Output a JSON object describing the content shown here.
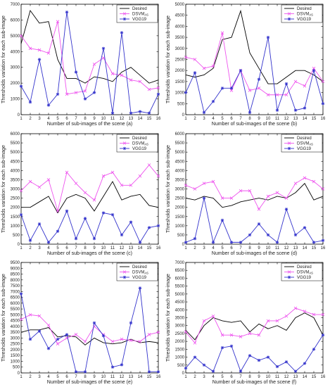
{
  "chart_data": [
    {
      "type": "line",
      "xlabel": "Number of sub-images of the scene (a)",
      "ylabel": "Thresholds variation  for each sub-image",
      "ylim": [
        0,
        7000
      ],
      "yticks": [
        0,
        1000,
        2000,
        3000,
        4000,
        5000,
        6000,
        7000
      ],
      "x": [
        1,
        2,
        3,
        4,
        5,
        6,
        7,
        8,
        9,
        10,
        11,
        12,
        13,
        14,
        15,
        16
      ],
      "legend_position": "top-right",
      "series": [
        {
          "name": "Desired",
          "color": "#000000",
          "marker": "none",
          "values": [
            4500,
            6600,
            5800,
            5900,
            3500,
            2300,
            2300,
            2000,
            2400,
            2300,
            2100,
            2700,
            3000,
            2500,
            2000,
            2200
          ]
        },
        {
          "name": "DSVM",
          "name_sub": "AS",
          "color": "#ee55ee",
          "marker": "x",
          "values": [
            5000,
            4200,
            4100,
            3900,
            5900,
            1300,
            1400,
            1500,
            3200,
            3600,
            2600,
            2500,
            2200,
            2100,
            1600,
            1700
          ]
        },
        {
          "name": "VGG19",
          "color": "#3333cc",
          "marker": "star",
          "values": [
            1800,
            800,
            3500,
            600,
            1300,
            6500,
            2700,
            1000,
            1400,
            4200,
            100,
            5200,
            100,
            200,
            100,
            1300
          ]
        }
      ]
    },
    {
      "type": "line",
      "xlabel": "Number of sub-images of the scene (b)",
      "ylabel": "Thresholds variation  for each sub-image",
      "ylim": [
        0,
        5000
      ],
      "yticks": [
        0,
        500,
        1000,
        1500,
        2000,
        2500,
        3000,
        3500,
        4000,
        4500,
        5000
      ],
      "x": [
        1,
        2,
        3,
        4,
        5,
        6,
        7,
        8,
        9,
        10,
        11,
        12,
        13,
        14,
        15,
        16
      ],
      "legend_position": "top-right",
      "series": [
        {
          "name": "Desired",
          "color": "#000000",
          "marker": "none",
          "values": [
            1800,
            1700,
            1800,
            2100,
            3400,
            3500,
            4700,
            2800,
            2100,
            1400,
            1400,
            1700,
            2000,
            2000,
            1800,
            1500
          ]
        },
        {
          "name": "DSVM",
          "name_sub": "AS",
          "color": "#ee55ee",
          "marker": "x",
          "values": [
            2600,
            2500,
            2100,
            2200,
            3700,
            1100,
            2000,
            1100,
            1200,
            900,
            900,
            900,
            1500,
            1300,
            2100,
            1500
          ]
        },
        {
          "name": "VGG19",
          "color": "#3333cc",
          "marker": "star",
          "values": [
            1000,
            1900,
            100,
            600,
            1200,
            1200,
            2000,
            100,
            1600,
            3500,
            200,
            1400,
            200,
            300,
            2000,
            500
          ]
        }
      ]
    },
    {
      "type": "line",
      "xlabel": "Number of sub-images of the scene (c)",
      "ylabel": "Thresholds variation  for each sub-image",
      "ylim": [
        0,
        6000
      ],
      "yticks": [
        0,
        500,
        1000,
        1500,
        2000,
        2500,
        3000,
        3500,
        4000,
        4500,
        5000,
        5500,
        6000
      ],
      "x": [
        1,
        2,
        3,
        4,
        5,
        6,
        7,
        8,
        9,
        10,
        11,
        12,
        13,
        14,
        15,
        16
      ],
      "legend_position": "top-right",
      "series": [
        {
          "name": "Desired",
          "color": "#000000",
          "marker": "none",
          "values": [
            2000,
            2000,
            2300,
            2600,
            1700,
            2500,
            2700,
            2500,
            1800,
            2600,
            3400,
            2400,
            2600,
            2700,
            2100,
            2000
          ]
        },
        {
          "name": "DSVM",
          "name_sub": "AS",
          "color": "#ee55ee",
          "marker": "x",
          "values": [
            2900,
            3400,
            3100,
            3500,
            1800,
            3900,
            3300,
            2800,
            2400,
            3700,
            3900,
            3200,
            3200,
            3700,
            4300,
            3700
          ]
        },
        {
          "name": "VGG19",
          "color": "#3333cc",
          "marker": "star",
          "values": [
            1600,
            200,
            1100,
            100,
            700,
            1800,
            300,
            1400,
            300,
            1700,
            1600,
            500,
            1200,
            100,
            900,
            1000
          ]
        }
      ]
    },
    {
      "type": "line",
      "xlabel": "Number of sub-images of the scene (d)",
      "ylabel": "Thresholds variation  for each sub-image",
      "ylim": [
        0,
        6000
      ],
      "yticks": [
        0,
        500,
        1000,
        1500,
        2000,
        2500,
        3000,
        3500,
        4000,
        4500,
        5000,
        5500,
        6000
      ],
      "x": [
        1,
        2,
        3,
        4,
        5,
        6,
        7,
        8,
        9,
        10,
        11,
        12,
        13,
        14,
        15,
        16
      ],
      "legend_position": "top-right",
      "series": [
        {
          "name": "Desired",
          "color": "#000000",
          "marker": "none",
          "values": [
            2500,
            2400,
            2600,
            2500,
            2000,
            2100,
            2300,
            2400,
            2500,
            2400,
            2600,
            2500,
            2800,
            3300,
            2400,
            2600
          ]
        },
        {
          "name": "DSVM",
          "name_sub": "AS",
          "color": "#ee55ee",
          "marker": "x",
          "values": [
            3200,
            3000,
            3300,
            3400,
            2500,
            2500,
            2900,
            2900,
            1900,
            2600,
            2800,
            2500,
            3300,
            3600,
            3400,
            3000
          ]
        },
        {
          "name": "VGG19",
          "color": "#3333cc",
          "marker": "star",
          "values": [
            100,
            300,
            2500,
            100,
            1300,
            100,
            100,
            500,
            1100,
            500,
            100,
            1900,
            500,
            900,
            100,
            200
          ]
        }
      ]
    },
    {
      "type": "line",
      "xlabel": "Number of sub-images of the scene (e)",
      "ylabel": "Thresholds variation  for each sub-image",
      "ylim": [
        0,
        9500
      ],
      "yticks": [
        0,
        500,
        1000,
        1500,
        2000,
        2500,
        3000,
        3500,
        4000,
        4500,
        5000,
        5500,
        6000,
        6500,
        7000,
        7500,
        8000,
        8500,
        9000,
        9500
      ],
      "x": [
        1,
        2,
        3,
        4,
        5,
        6,
        7,
        8,
        9,
        10,
        11,
        12,
        13,
        14,
        15,
        16
      ],
      "legend_position": "top-right",
      "series": [
        {
          "name": "Desired",
          "color": "#000000",
          "marker": "none",
          "values": [
            3500,
            3700,
            3700,
            3900,
            3100,
            3200,
            3100,
            2400,
            3000,
            2600,
            2500,
            2600,
            2900,
            2600,
            2700,
            2600
          ]
        },
        {
          "name": "DSVM",
          "name_sub": "AS",
          "color": "#ee55ee",
          "marker": "x",
          "values": [
            4600,
            5000,
            4900,
            4100,
            2500,
            3000,
            3300,
            2700,
            4000,
            3300,
            2700,
            2900,
            2800,
            2700,
            3300,
            3500
          ]
        },
        {
          "name": "VGG19",
          "color": "#3333cc",
          "marker": "star",
          "values": [
            6800,
            2900,
            3600,
            2100,
            2900,
            3300,
            100,
            100,
            4300,
            3200,
            500,
            700,
            4300,
            7300,
            100,
            100
          ]
        }
      ]
    },
    {
      "type": "line",
      "xlabel": "Number of sub-images of the scene (f)",
      "ylabel": "Thresholds variation  for each sub-image",
      "ylim": [
        0,
        7000
      ],
      "yticks": [
        0,
        500,
        1000,
        1500,
        2000,
        2500,
        3000,
        3500,
        4000,
        4500,
        5000,
        5500,
        6000,
        6500,
        7000
      ],
      "x": [
        1,
        2,
        3,
        4,
        5,
        6,
        7,
        8,
        9,
        10,
        11,
        12,
        13,
        14,
        15,
        16
      ],
      "legend_position": "top-right",
      "series": [
        {
          "name": "Desired",
          "color": "#000000",
          "marker": "none",
          "values": [
            2700,
            2100,
            3000,
            3500,
            3300,
            3200,
            3300,
            2600,
            3100,
            2800,
            3000,
            2700,
            3500,
            3800,
            3500,
            2400
          ]
        },
        {
          "name": "DSVM",
          "name_sub": "AS",
          "color": "#ee55ee",
          "marker": "x",
          "values": [
            2600,
            1900,
            3300,
            3600,
            2400,
            2400,
            2300,
            2500,
            2400,
            3300,
            3300,
            3600,
            4100,
            3900,
            3700,
            3700
          ]
        },
        {
          "name": "VGG19",
          "color": "#3333cc",
          "marker": "star",
          "values": [
            300,
            1000,
            500,
            100,
            1600,
            1700,
            100,
            1100,
            800,
            1000,
            400,
            700,
            100,
            600,
            1500,
            2400
          ]
        }
      ]
    }
  ]
}
